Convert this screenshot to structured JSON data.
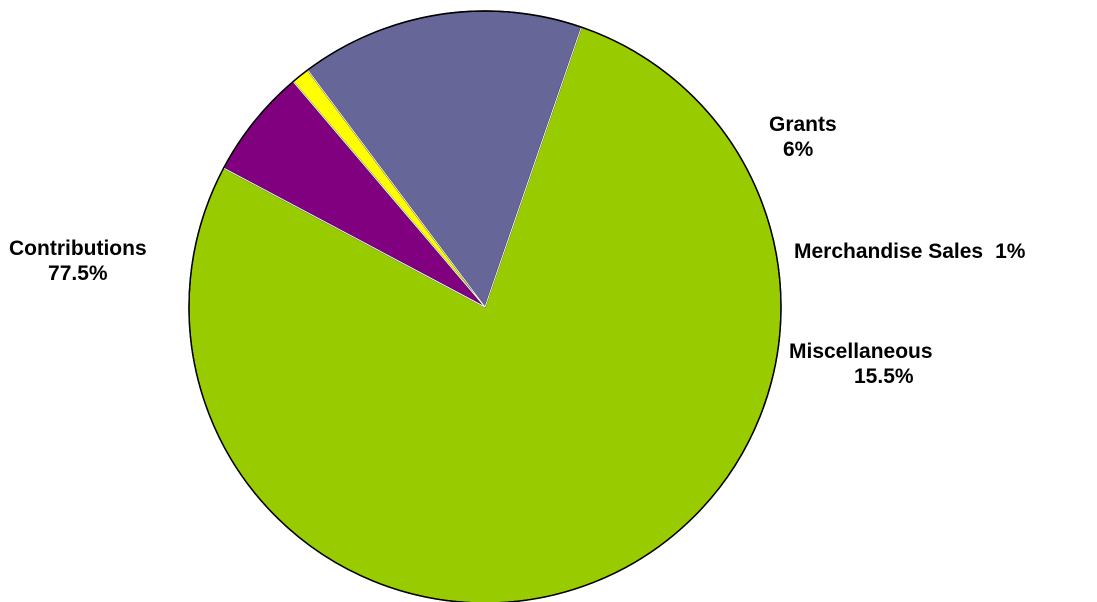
{
  "chart_data": {
    "type": "pie",
    "title": "",
    "start_angle_deg": 152,
    "direction": "clockwise",
    "slices": [
      {
        "name": "Grants",
        "value": 6,
        "label": "6%",
        "color": "#800080"
      },
      {
        "name": "Merchandise Sales",
        "value": 1,
        "label": "1%",
        "color": "#FFFF00"
      },
      {
        "name": "Miscellaneous",
        "value": 15.5,
        "label": "15.5%",
        "color": "#666699"
      },
      {
        "name": "Contributions",
        "value": 77.5,
        "label": "77.5%",
        "color": "#99CC00"
      }
    ]
  }
}
